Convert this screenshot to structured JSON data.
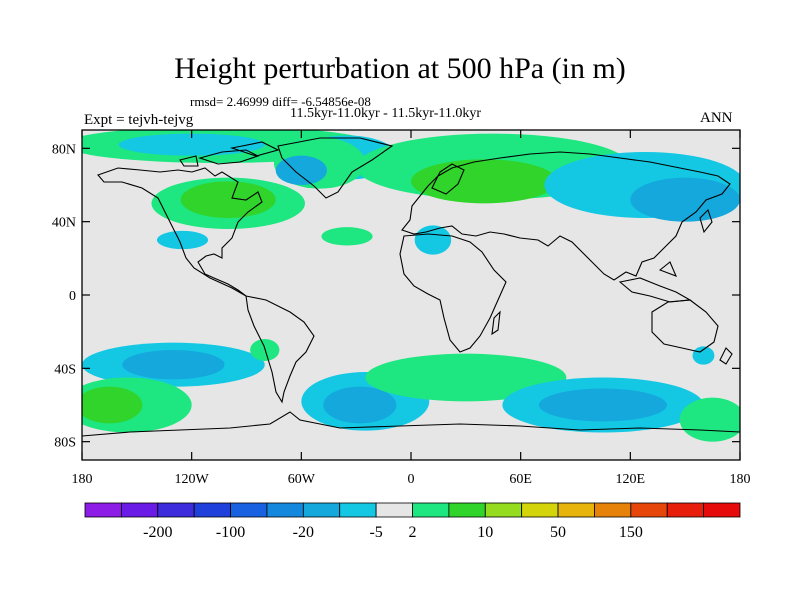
{
  "chart_data": {
    "type": "contour-map",
    "title": "Height perturbation at 500 hPa (in m)",
    "stats_line": "rmsd= 2.46999 diff= -6.54856e-08",
    "cases_line": "11.5kyr-11.0kyr - 11.5kyr-11.0kyr",
    "expt_label": "Expt = tejvh-tejvg",
    "season": "ANN",
    "projection": "cylindrical-equidistant",
    "lon_range": [
      -180,
      180
    ],
    "lat_range": [
      -90,
      90
    ],
    "x_ticks": [
      {
        "lon": -180,
        "label": "180"
      },
      {
        "lon": -120,
        "label": "120W"
      },
      {
        "lon": -60,
        "label": "60W"
      },
      {
        "lon": 0,
        "label": "0"
      },
      {
        "lon": 60,
        "label": "60E"
      },
      {
        "lon": 120,
        "label": "120E"
      },
      {
        "lon": 180,
        "label": "180"
      }
    ],
    "y_ticks": [
      {
        "lat": 80,
        "label": "80N"
      },
      {
        "lat": 40,
        "label": "40N"
      },
      {
        "lat": 0,
        "label": "0"
      },
      {
        "lat": -40,
        "label": "40S"
      },
      {
        "lat": -80,
        "label": "80S"
      }
    ],
    "colorbar": {
      "colors": [
        "#8c1ce6",
        "#6a1ce6",
        "#3c2cdc",
        "#2040dc",
        "#1862e2",
        "#1488dc",
        "#14a8dc",
        "#14c8e4",
        "#e6e6e6",
        "#1ee680",
        "#30d42a",
        "#96dc1e",
        "#d4d40a",
        "#e6b40a",
        "#e6820a",
        "#e6460a",
        "#e61e0a",
        "#e60a0a"
      ],
      "labels": [
        "-200",
        "-100",
        "-20",
        "-5",
        "2",
        "10",
        "50",
        "150"
      ],
      "label_after_box": [
        1,
        3,
        5,
        7,
        8,
        10,
        12,
        14
      ]
    },
    "anomaly_regions": [
      {
        "lon": -105,
        "lat": 82,
        "rlon": 85,
        "rlat": 10,
        "level": "pos1"
      },
      {
        "lon": -120,
        "lat": 82,
        "rlon": 40,
        "rlat": 6,
        "level": "neg1"
      },
      {
        "lon": -35,
        "lat": 75,
        "rlon": 28,
        "rlat": 12,
        "level": "neg1"
      },
      {
        "lon": -50,
        "lat": 72,
        "rlon": 25,
        "rlat": 14,
        "level": "pos1"
      },
      {
        "lon": -60,
        "lat": 68,
        "rlon": 14,
        "rlat": 8,
        "level": "neg2"
      },
      {
        "lon": -100,
        "lat": 50,
        "rlon": 42,
        "rlat": 14,
        "level": "pos1"
      },
      {
        "lon": -100,
        "lat": 52,
        "rlon": 26,
        "rlat": 10,
        "level": "pos2"
      },
      {
        "lon": -125,
        "lat": 30,
        "rlon": 14,
        "rlat": 5,
        "level": "neg1"
      },
      {
        "lon": -35,
        "lat": 32,
        "rlon": 14,
        "rlat": 5,
        "level": "pos1"
      },
      {
        "lon": 45,
        "lat": 70,
        "rlon": 75,
        "rlat": 18,
        "level": "pos1"
      },
      {
        "lon": 40,
        "lat": 62,
        "rlon": 40,
        "rlat": 12,
        "level": "pos2"
      },
      {
        "lon": 12,
        "lat": 30,
        "rlon": 10,
        "rlat": 8,
        "level": "neg1"
      },
      {
        "lon": 128,
        "lat": 60,
        "rlon": 55,
        "rlat": 18,
        "level": "neg1"
      },
      {
        "lon": 150,
        "lat": 52,
        "rlon": 30,
        "rlat": 12,
        "level": "neg2"
      },
      {
        "lon": -130,
        "lat": -38,
        "rlon": 50,
        "rlat": 12,
        "level": "neg1"
      },
      {
        "lon": -130,
        "lat": -38,
        "rlon": 28,
        "rlat": 8,
        "level": "neg2"
      },
      {
        "lon": -155,
        "lat": -60,
        "rlon": 35,
        "rlat": 15,
        "level": "pos1"
      },
      {
        "lon": -165,
        "lat": -60,
        "rlon": 18,
        "rlat": 10,
        "level": "pos2"
      },
      {
        "lon": -80,
        "lat": -30,
        "rlon": 8,
        "rlat": 6,
        "level": "pos1"
      },
      {
        "lon": -25,
        "lat": -58,
        "rlon": 35,
        "rlat": 16,
        "level": "neg1"
      },
      {
        "lon": -28,
        "lat": -60,
        "rlon": 20,
        "rlat": 10,
        "level": "neg2"
      },
      {
        "lon": 30,
        "lat": -45,
        "rlon": 55,
        "rlat": 13,
        "level": "pos1"
      },
      {
        "lon": 105,
        "lat": -60,
        "rlon": 55,
        "rlat": 15,
        "level": "neg1"
      },
      {
        "lon": 105,
        "lat": -60,
        "rlon": 35,
        "rlat": 9,
        "level": "neg2"
      },
      {
        "lon": 165,
        "lat": -68,
        "rlon": 18,
        "rlat": 12,
        "level": "pos1"
      },
      {
        "lon": 160,
        "lat": -33,
        "rlon": 6,
        "rlat": 5,
        "level": "neg1"
      }
    ],
    "level_colors": {
      "pos1": "#1ee680",
      "pos2": "#30d42a",
      "neg1": "#14c8e4",
      "neg2": "#14a8dc"
    },
    "background": "#e6e6e6"
  }
}
